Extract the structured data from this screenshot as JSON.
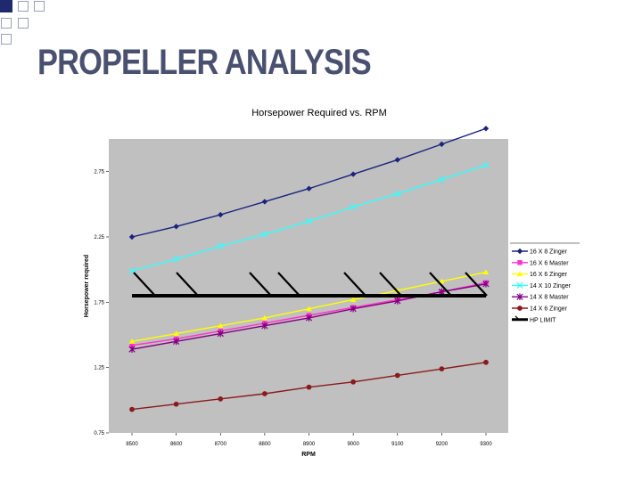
{
  "slide": {
    "title": "PROPELLER ANALYSIS"
  },
  "chart_data": {
    "type": "line",
    "title": "Horsepower Required vs. RPM",
    "xlabel": "RPM",
    "ylabel": "Horsepower required",
    "categories": [
      "8500",
      "8600",
      "8700",
      "8800",
      "8900",
      "9000",
      "9100",
      "9200",
      "9300"
    ],
    "ylim": [
      0.75,
      3.0
    ],
    "yticks": [
      "0.75",
      "1.25",
      "1.75",
      "2.25",
      "2.75"
    ],
    "grid": false,
    "legend_position": "right",
    "plot_background": "#c0c0c0",
    "series": [
      {
        "name": "16 X 8 Zinger",
        "color": "#1a237e",
        "marker": "diamond",
        "values": [
          2.25,
          2.33,
          2.42,
          2.52,
          2.62,
          2.73,
          2.84,
          2.96,
          3.08
        ]
      },
      {
        "name": "16 X 6 Master",
        "color": "#ff33cc",
        "marker": "square",
        "values": [
          1.42,
          1.47,
          1.53,
          1.59,
          1.65,
          1.71,
          1.77,
          1.83,
          1.9
        ]
      },
      {
        "name": "16 X 6 Zinger",
        "color": "#ffff00",
        "marker": "triangle",
        "values": [
          1.45,
          1.51,
          1.57,
          1.63,
          1.7,
          1.77,
          1.84,
          1.91,
          1.98
        ]
      },
      {
        "name": "14 X 10 Zinger",
        "color": "#33ffff",
        "marker": "x",
        "values": [
          1.99,
          2.08,
          2.18,
          2.27,
          2.37,
          2.48,
          2.58,
          2.69,
          2.8
        ]
      },
      {
        "name": "14 X 8 Master",
        "color": "#800080",
        "marker": "star",
        "values": [
          1.39,
          1.45,
          1.51,
          1.57,
          1.63,
          1.7,
          1.76,
          1.83,
          1.89
        ]
      },
      {
        "name": "14 X 6 Zinger",
        "color": "#8b1a1a",
        "marker": "circle",
        "values": [
          0.93,
          0.97,
          1.01,
          1.05,
          1.1,
          1.14,
          1.19,
          1.24,
          1.29
        ]
      },
      {
        "name": "HP LIMIT",
        "color": "#000000",
        "marker": "none",
        "hatched": true,
        "values": [
          1.8,
          1.8,
          1.8,
          1.8,
          1.8,
          1.8,
          1.8,
          1.8,
          1.8
        ]
      }
    ]
  }
}
